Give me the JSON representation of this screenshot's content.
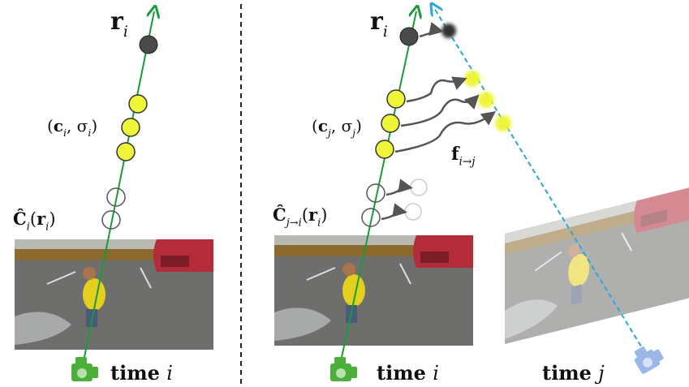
{
  "left": {
    "ray_label": [
      {
        "t": "r",
        "bold": true
      },
      {
        "sub": "i"
      }
    ],
    "sample_label": [
      {
        "t": "("
      },
      {
        "t": "c",
        "bold": true
      },
      {
        "sub": "i"
      },
      {
        "t": ", σ"
      },
      {
        "sub": "i"
      },
      {
        "t": ")"
      }
    ],
    "render_label": [
      {
        "t": "Ĉ",
        "bold": true
      },
      {
        "sub": "i"
      },
      {
        "t": "("
      },
      {
        "t": "r",
        "bold": true
      },
      {
        "sub": "i"
      },
      {
        "t": ")"
      }
    ],
    "time_label": [
      {
        "t": "time ",
        "bold": true
      },
      {
        "t": "i",
        "italic": true
      }
    ]
  },
  "right": {
    "ray_label": [
      {
        "t": "r",
        "bold": true
      },
      {
        "sub": "i"
      }
    ],
    "sample_label": [
      {
        "t": "("
      },
      {
        "t": "c",
        "bold": true
      },
      {
        "sub": "j"
      },
      {
        "t": ", σ"
      },
      {
        "sub": "j"
      },
      {
        "t": ")"
      }
    ],
    "flow_label": [
      {
        "t": "f",
        "bold": true
      },
      {
        "sub": "i→j"
      }
    ],
    "render_label": [
      {
        "t": "Ĉ",
        "bold": true
      },
      {
        "sub": "j→i"
      },
      {
        "t": "("
      },
      {
        "t": "r",
        "bold": true
      },
      {
        "sub": "i"
      },
      {
        "t": ")"
      }
    ],
    "time_i_label": [
      {
        "t": "time ",
        "bold": true
      },
      {
        "t": "i",
        "italic": true
      }
    ],
    "time_j_label": [
      {
        "t": "time ",
        "bold": true
      },
      {
        "t": "j",
        "italic": true
      }
    ]
  }
}
